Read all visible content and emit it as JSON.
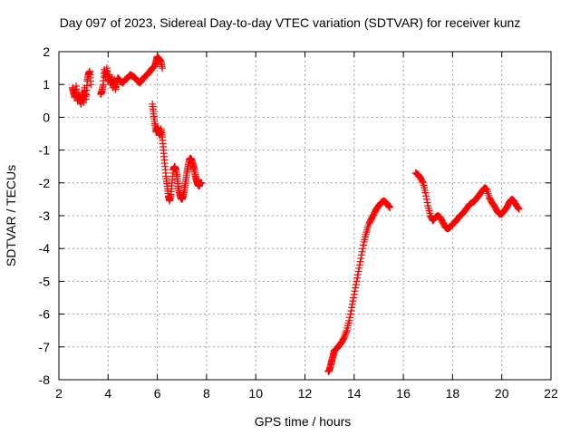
{
  "chart_data": {
    "type": "scatter",
    "title": "Day 097 of 2023, Sidereal Day-to-day VTEC variation (SDTVAR) for receiver kunz",
    "xlabel": "GPS time / hours",
    "ylabel": "SDTVAR / TECUs",
    "xlim": [
      2,
      22
    ],
    "ylim": [
      -8,
      2
    ],
    "xticks": [
      2,
      4,
      6,
      8,
      10,
      12,
      14,
      16,
      18,
      20,
      22
    ],
    "yticks": [
      -8,
      -7,
      -6,
      -5,
      -4,
      -3,
      -2,
      -1,
      0,
      1,
      2
    ],
    "grid": true,
    "marker": "+",
    "color": "#ff0000",
    "segments": [
      [
        [
          2.55,
          0.9
        ],
        [
          2.6,
          0.75
        ],
        [
          2.65,
          0.6
        ],
        [
          2.7,
          0.95
        ],
        [
          2.75,
          0.5
        ],
        [
          2.8,
          0.7
        ],
        [
          2.85,
          0.55
        ],
        [
          2.9,
          0.4
        ],
        [
          2.95,
          0.75
        ],
        [
          3.0,
          0.45
        ],
        [
          3.05,
          0.9
        ],
        [
          3.1,
          0.55
        ],
        [
          3.15,
          1.1
        ],
        [
          3.2,
          1.3
        ],
        [
          3.25,
          1.4
        ],
        [
          3.3,
          1.0
        ]
      ],
      [
        [
          3.7,
          0.7
        ],
        [
          3.75,
          0.8
        ],
        [
          3.8,
          1.0
        ],
        [
          3.85,
          1.45
        ],
        [
          3.9,
          1.2
        ],
        [
          3.95,
          1.5
        ],
        [
          4.0,
          1.1
        ],
        [
          4.05,
          1.3
        ],
        [
          4.1,
          1.0
        ],
        [
          4.15,
          1.2
        ],
        [
          4.2,
          0.9
        ],
        [
          4.25,
          1.15
        ],
        [
          4.3,
          0.85
        ],
        [
          4.35,
          1.05
        ],
        [
          4.4,
          1.2
        ],
        [
          4.5,
          1.1
        ],
        [
          4.6,
          1.05
        ],
        [
          4.7,
          1.15
        ],
        [
          4.8,
          1.2
        ],
        [
          4.9,
          1.3
        ],
        [
          5.0,
          1.25
        ],
        [
          5.1,
          1.2
        ],
        [
          5.2,
          1.1
        ],
        [
          5.3,
          1.05
        ],
        [
          5.4,
          1.15
        ],
        [
          5.5,
          1.25
        ],
        [
          5.6,
          1.3
        ],
        [
          5.7,
          1.4
        ],
        [
          5.8,
          1.5
        ],
        [
          5.9,
          1.55
        ],
        [
          5.95,
          1.7
        ],
        [
          6.0,
          1.85
        ],
        [
          6.05,
          1.8
        ],
        [
          6.1,
          1.75
        ],
        [
          6.15,
          1.7
        ],
        [
          6.2,
          1.5
        ]
      ],
      [
        [
          5.8,
          0.4
        ],
        [
          5.85,
          0.1
        ],
        [
          5.9,
          -0.2
        ],
        [
          5.95,
          -0.45
        ],
        [
          6.0,
          -0.3
        ],
        [
          6.05,
          -0.45
        ],
        [
          6.1,
          -0.55
        ],
        [
          6.15,
          -0.35
        ],
        [
          6.2,
          -0.6
        ],
        [
          6.25,
          -1.0
        ],
        [
          6.3,
          -1.4
        ],
        [
          6.35,
          -1.8
        ],
        [
          6.4,
          -2.1
        ],
        [
          6.45,
          -2.4
        ],
        [
          6.5,
          -2.55
        ],
        [
          6.55,
          -2.35
        ],
        [
          6.6,
          -2.0
        ],
        [
          6.65,
          -1.6
        ],
        [
          6.7,
          -1.5
        ],
        [
          6.75,
          -1.6
        ],
        [
          6.8,
          -1.8
        ],
        [
          6.85,
          -2.1
        ],
        [
          6.9,
          -2.3
        ],
        [
          6.95,
          -2.45
        ],
        [
          7.0,
          -2.5
        ],
        [
          7.05,
          -2.4
        ],
        [
          7.1,
          -2.2
        ],
        [
          7.15,
          -1.95
        ],
        [
          7.2,
          -1.7
        ],
        [
          7.25,
          -1.5
        ],
        [
          7.3,
          -1.3
        ],
        [
          7.35,
          -1.25
        ],
        [
          7.4,
          -1.3
        ],
        [
          7.45,
          -1.45
        ],
        [
          7.5,
          -1.6
        ],
        [
          7.55,
          -1.8
        ],
        [
          7.6,
          -1.95
        ],
        [
          7.65,
          -2.05
        ],
        [
          7.7,
          -2.1
        ],
        [
          7.75,
          -2.0
        ],
        [
          7.8,
          -2.0
        ]
      ],
      [
        [
          12.95,
          -7.75
        ],
        [
          13.0,
          -7.7
        ],
        [
          13.05,
          -7.55
        ],
        [
          13.1,
          -7.4
        ],
        [
          13.15,
          -7.25
        ],
        [
          13.2,
          -7.1
        ],
        [
          13.3,
          -7.05
        ],
        [
          13.4,
          -6.95
        ],
        [
          13.5,
          -6.85
        ],
        [
          13.6,
          -6.7
        ],
        [
          13.7,
          -6.5
        ],
        [
          13.8,
          -6.2
        ],
        [
          13.9,
          -5.8
        ],
        [
          14.0,
          -5.4
        ],
        [
          14.1,
          -5.0
        ],
        [
          14.2,
          -4.6
        ],
        [
          14.3,
          -4.2
        ],
        [
          14.4,
          -3.8
        ],
        [
          14.5,
          -3.5
        ],
        [
          14.6,
          -3.25
        ],
        [
          14.7,
          -3.1
        ],
        [
          14.8,
          -2.95
        ],
        [
          14.9,
          -2.8
        ],
        [
          15.0,
          -2.7
        ],
        [
          15.1,
          -2.6
        ],
        [
          15.2,
          -2.55
        ],
        [
          15.3,
          -2.6
        ],
        [
          15.4,
          -2.7
        ],
        [
          15.45,
          -2.75
        ]
      ],
      [
        [
          16.5,
          -1.7
        ],
        [
          16.6,
          -1.75
        ],
        [
          16.7,
          -1.85
        ],
        [
          16.8,
          -2.0
        ],
        [
          16.9,
          -2.3
        ],
        [
          17.0,
          -2.7
        ],
        [
          17.1,
          -3.0
        ],
        [
          17.2,
          -3.15
        ],
        [
          17.3,
          -3.05
        ],
        [
          17.4,
          -3.0
        ],
        [
          17.5,
          -3.05
        ],
        [
          17.6,
          -3.2
        ],
        [
          17.7,
          -3.35
        ],
        [
          17.8,
          -3.4
        ],
        [
          17.9,
          -3.35
        ],
        [
          18.0,
          -3.25
        ],
        [
          18.1,
          -3.2
        ],
        [
          18.2,
          -3.1
        ],
        [
          18.3,
          -3.0
        ],
        [
          18.4,
          -2.95
        ],
        [
          18.5,
          -2.85
        ],
        [
          18.6,
          -2.75
        ],
        [
          18.7,
          -2.65
        ],
        [
          18.8,
          -2.6
        ],
        [
          18.9,
          -2.55
        ],
        [
          19.0,
          -2.45
        ],
        [
          19.1,
          -2.35
        ],
        [
          19.2,
          -2.25
        ],
        [
          19.3,
          -2.15
        ],
        [
          19.4,
          -2.2
        ],
        [
          19.5,
          -2.45
        ],
        [
          19.6,
          -2.6
        ],
        [
          19.7,
          -2.7
        ],
        [
          19.8,
          -2.85
        ],
        [
          19.9,
          -2.95
        ],
        [
          20.0,
          -2.95
        ],
        [
          20.1,
          -2.85
        ],
        [
          20.2,
          -2.75
        ],
        [
          20.3,
          -2.6
        ],
        [
          20.4,
          -2.5
        ],
        [
          20.5,
          -2.55
        ],
        [
          20.6,
          -2.7
        ],
        [
          20.7,
          -2.8
        ]
      ]
    ]
  }
}
